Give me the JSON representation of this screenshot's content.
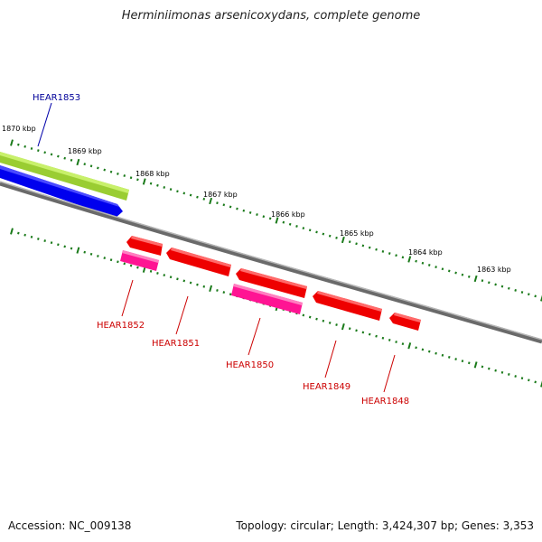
{
  "title": "Herminiimonas arsenicoxydans, complete genome",
  "accession_label": "Accession: NC_009138",
  "summary_label": "Topology: circular; Length: 3,424,307 bp; Genes: 3,353",
  "colors": {
    "backbone": "#808080",
    "tick": "#1a7a1a",
    "forward_gene": "#0000ff",
    "forward_gene_alt": "#9acd32",
    "reverse_gene": "#ff0000",
    "reverse_gene_alt": "#ff1493",
    "label_forward": "#000099",
    "label_reverse": "#cc0000"
  },
  "kbp_scale": [
    "1870 kbp",
    "1869 kbp",
    "1868 kbp",
    "1867 kbp",
    "1866 kbp",
    "1865 kbp",
    "1864 kbp",
    "1863 kbp"
  ],
  "genes": [
    {
      "id": "HEAR1853",
      "strand": "forward"
    },
    {
      "id": "HEAR1852",
      "strand": "reverse"
    },
    {
      "id": "HEAR1851",
      "strand": "reverse"
    },
    {
      "id": "HEAR1850",
      "strand": "reverse"
    },
    {
      "id": "HEAR1849",
      "strand": "reverse"
    },
    {
      "id": "HEAR1848",
      "strand": "reverse"
    }
  ]
}
